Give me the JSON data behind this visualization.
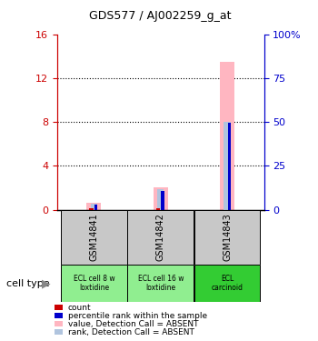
{
  "title": "GDS577 / AJ002259_g_at",
  "samples": [
    "GSM14841",
    "GSM14842",
    "GSM14843"
  ],
  "cell_types": [
    "ECL cell 8 w\nloxtidine",
    "ECL cell 16 w\nloxtidine",
    "ECL\ncarcinoid"
  ],
  "cell_type_colors": [
    "#90ee90",
    "#90ee90",
    "#33cc33"
  ],
  "bar_absent_value": [
    0.6,
    2.0,
    13.5
  ],
  "bar_absent_rank": [
    0.55,
    1.85,
    8.0
  ],
  "bar_count": [
    0.15,
    0.15,
    0.0
  ],
  "bar_rank": [
    0.5,
    1.7,
    7.9
  ],
  "ylim_left": [
    0,
    16
  ],
  "ylim_right": [
    0,
    100
  ],
  "yticks_left": [
    0,
    4,
    8,
    12,
    16
  ],
  "yticks_right": [
    0,
    25,
    50,
    75,
    100
  ],
  "left_color": "#cc0000",
  "right_color": "#0000cc",
  "absent_bar_color": "#ffb6c1",
  "absent_rank_color": "#b0c4de",
  "count_color": "#cc0000",
  "rank_color": "#0000cc",
  "grid_lines": [
    4,
    8,
    12
  ],
  "legend_items": [
    {
      "label": "count",
      "color": "#cc0000"
    },
    {
      "label": "percentile rank within the sample",
      "color": "#0000cc"
    },
    {
      "label": "value, Detection Call = ABSENT",
      "color": "#ffb6c1"
    },
    {
      "label": "rank, Detection Call = ABSENT",
      "color": "#b0c4de"
    }
  ],
  "cell_type_label": "cell type",
  "gsm_box_color": "#c8c8c8"
}
